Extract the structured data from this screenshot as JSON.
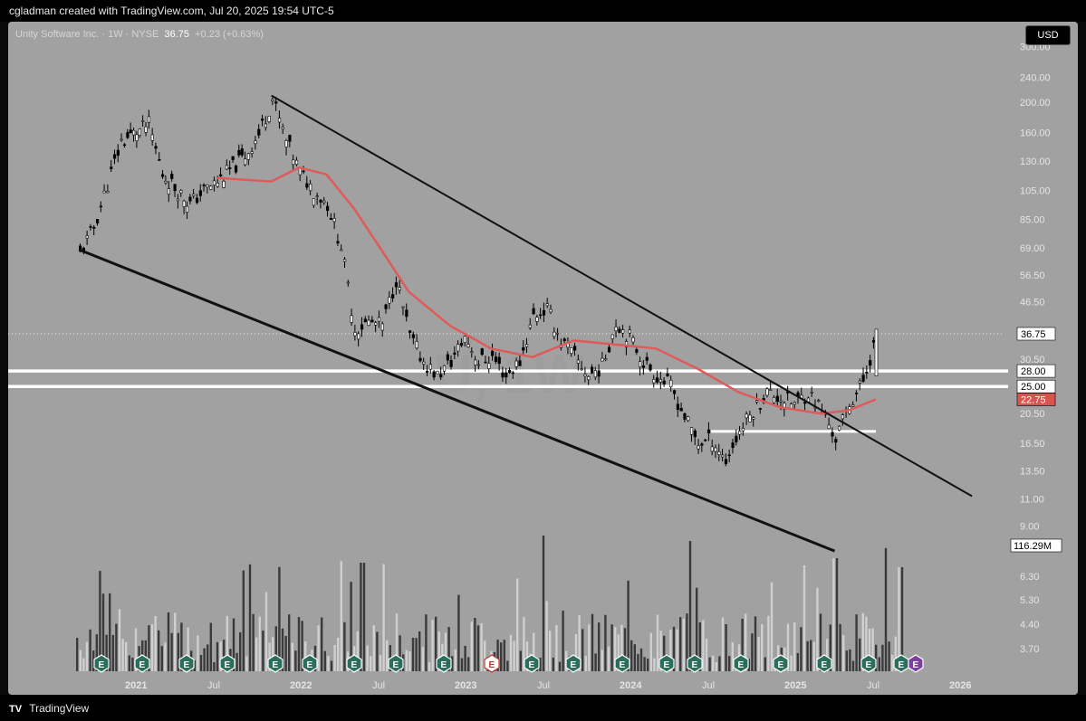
{
  "header": {
    "caption": "cgladman created with TradingView.com, Jul 20, 2025 19:54 UTC-5"
  },
  "legend": {
    "symbol": "Unity Software Inc. · 1W · NYSE",
    "price": "36.75",
    "change": "+0.23 (+0.63%)"
  },
  "currency_button": "USD",
  "watermark": "U, 1W",
  "footer": {
    "brand": "TradingView"
  },
  "colors": {
    "background": "#a1a1a1",
    "ma_line": "#e05a5a",
    "up_candle": "#ffffff",
    "down_candle": "#000000",
    "trendline": "#111111",
    "level_line": "#ffffff"
  },
  "chart_data": {
    "type": "candlestick",
    "symbol": "Unity Software Inc.",
    "interval": "1W",
    "exchange": "NYSE",
    "y_scale": "log",
    "y_ticks": [
      "300.00",
      "240.00",
      "200.00",
      "160.00",
      "130.00",
      "105.00",
      "85.00",
      "69.00",
      "56.50",
      "46.50",
      "30.50",
      "20.50",
      "16.50",
      "13.50",
      "11.00",
      "9.00",
      "6.30",
      "5.30",
      "4.40",
      "3.70"
    ],
    "x_ticks": [
      "2021",
      "Jul",
      "2022",
      "Jul",
      "2023",
      "Jul",
      "2024",
      "Jul",
      "2025",
      "Jul",
      "2026"
    ],
    "price_labels": [
      {
        "text": "36.75",
        "style": "current"
      },
      {
        "text": "28.00",
        "style": "level"
      },
      {
        "text": "25.00",
        "style": "level"
      },
      {
        "text": "22.75",
        "style": "ma"
      }
    ],
    "volume_label": "116.29M",
    "horizontal_levels": [
      28.0,
      25.0
    ],
    "support_segment": {
      "from": "2024-07",
      "to": "2025-07",
      "price": 18.0
    },
    "ma_series": [
      {
        "date": "2021-07",
        "value": 115
      },
      {
        "date": "2021-11",
        "value": 112
      },
      {
        "date": "2022-01",
        "value": 124
      },
      {
        "date": "2022-03",
        "value": 118
      },
      {
        "date": "2022-05",
        "value": 92
      },
      {
        "date": "2022-07",
        "value": 68
      },
      {
        "date": "2022-09",
        "value": 50
      },
      {
        "date": "2022-12",
        "value": 39
      },
      {
        "date": "2023-03",
        "value": 33
      },
      {
        "date": "2023-06",
        "value": 31
      },
      {
        "date": "2023-09",
        "value": 35
      },
      {
        "date": "2023-12",
        "value": 34
      },
      {
        "date": "2024-03",
        "value": 33
      },
      {
        "date": "2024-06",
        "value": 28.5
      },
      {
        "date": "2024-09",
        "value": 24
      },
      {
        "date": "2024-12",
        "value": 21.5
      },
      {
        "date": "2025-03",
        "value": 20.5
      },
      {
        "date": "2025-05",
        "value": 21
      },
      {
        "date": "2025-07",
        "value": 22.75
      }
    ],
    "price_path": [
      {
        "date": "2020-09",
        "value": 66
      },
      {
        "date": "2020-10",
        "value": 80
      },
      {
        "date": "2020-11",
        "value": 110
      },
      {
        "date": "2020-12",
        "value": 150
      },
      {
        "date": "2021-02",
        "value": 170
      },
      {
        "date": "2021-03",
        "value": 118
      },
      {
        "date": "2021-05",
        "value": 95
      },
      {
        "date": "2021-06",
        "value": 105
      },
      {
        "date": "2021-07",
        "value": 112
      },
      {
        "date": "2021-09",
        "value": 135
      },
      {
        "date": "2021-10",
        "value": 158
      },
      {
        "date": "2021-11",
        "value": 205
      },
      {
        "date": "2021-12",
        "value": 150
      },
      {
        "date": "2022-01",
        "value": 120
      },
      {
        "date": "2022-02",
        "value": 105
      },
      {
        "date": "2022-03",
        "value": 95
      },
      {
        "date": "2022-04",
        "value": 70
      },
      {
        "date": "2022-05",
        "value": 38
      },
      {
        "date": "2022-06",
        "value": 40
      },
      {
        "date": "2022-07",
        "value": 39
      },
      {
        "date": "2022-08",
        "value": 55
      },
      {
        "date": "2022-09",
        "value": 36
      },
      {
        "date": "2022-10",
        "value": 30
      },
      {
        "date": "2022-11",
        "value": 27
      },
      {
        "date": "2022-12",
        "value": 30
      },
      {
        "date": "2023-01",
        "value": 36
      },
      {
        "date": "2023-02",
        "value": 30
      },
      {
        "date": "2023-03",
        "value": 31
      },
      {
        "date": "2023-04",
        "value": 27
      },
      {
        "date": "2023-05",
        "value": 30
      },
      {
        "date": "2023-06",
        "value": 42
      },
      {
        "date": "2023-07",
        "value": 44
      },
      {
        "date": "2023-08",
        "value": 35
      },
      {
        "date": "2023-09",
        "value": 31
      },
      {
        "date": "2023-10",
        "value": 27
      },
      {
        "date": "2023-11",
        "value": 29
      },
      {
        "date": "2023-12",
        "value": 40
      },
      {
        "date": "2024-01",
        "value": 36
      },
      {
        "date": "2024-02",
        "value": 30
      },
      {
        "date": "2024-03",
        "value": 27
      },
      {
        "date": "2024-04",
        "value": 25
      },
      {
        "date": "2024-05",
        "value": 20
      },
      {
        "date": "2024-06",
        "value": 16.5
      },
      {
        "date": "2024-07",
        "value": 17
      },
      {
        "date": "2024-08",
        "value": 14.5
      },
      {
        "date": "2024-09",
        "value": 18
      },
      {
        "date": "2024-10",
        "value": 21
      },
      {
        "date": "2024-11",
        "value": 24
      },
      {
        "date": "2024-12",
        "value": 23
      },
      {
        "date": "2025-01",
        "value": 22
      },
      {
        "date": "2025-02",
        "value": 24
      },
      {
        "date": "2025-03",
        "value": 21
      },
      {
        "date": "2025-04",
        "value": 17
      },
      {
        "date": "2025-05",
        "value": 22
      },
      {
        "date": "2025-06",
        "value": 26
      },
      {
        "date": "2025-07",
        "value": 36.75
      }
    ],
    "trendlines": [
      {
        "name": "upper",
        "from": {
          "date": "2021-11",
          "value": 210
        },
        "to": {
          "date": "2026-02",
          "value": 11.2
        }
      },
      {
        "name": "lower",
        "from": {
          "date": "2020-09",
          "value": 68
        },
        "to": {
          "date": "2025-04",
          "value": 7.5
        }
      }
    ],
    "earnings_markers": 21
  }
}
